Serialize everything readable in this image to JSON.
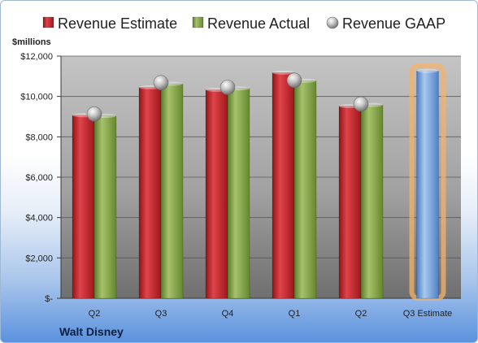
{
  "chart_data": {
    "type": "bar",
    "unit_label": "$millions",
    "company": "Walt Disney",
    "categories": [
      "Q2",
      "Q3",
      "Q4",
      "Q1",
      "Q2",
      "Q3 Estimate"
    ],
    "series": [
      {
        "name": "Revenue Estimate",
        "values": [
          9070,
          10450,
          10330,
          11180,
          9520,
          11270
        ]
      },
      {
        "name": "Revenue Actual",
        "values": [
          9040,
          10630,
          10400,
          10780,
          9580,
          null
        ]
      },
      {
        "name": "Revenue GAAP",
        "values": [
          9130,
          10680,
          10450,
          10800,
          9620,
          null
        ]
      }
    ],
    "ylim": [
      0,
      12000
    ],
    "yticks": [
      0,
      2000,
      4000,
      6000,
      8000,
      10000,
      12000
    ],
    "ytick_labels": [
      "$-",
      "$2,000",
      "$4,000",
      "$6,000",
      "$8,000",
      "$10,000",
      "$12,000"
    ],
    "legend_position": "top",
    "grid": true,
    "highlighted_category": "Q3 Estimate",
    "colors": {
      "estimate": "#c0262b",
      "actual": "#82a34a",
      "gaap": "#bcbcbc",
      "forecast_bar": "#7aa6dd",
      "forecast_glow": "#f5b26a"
    }
  }
}
